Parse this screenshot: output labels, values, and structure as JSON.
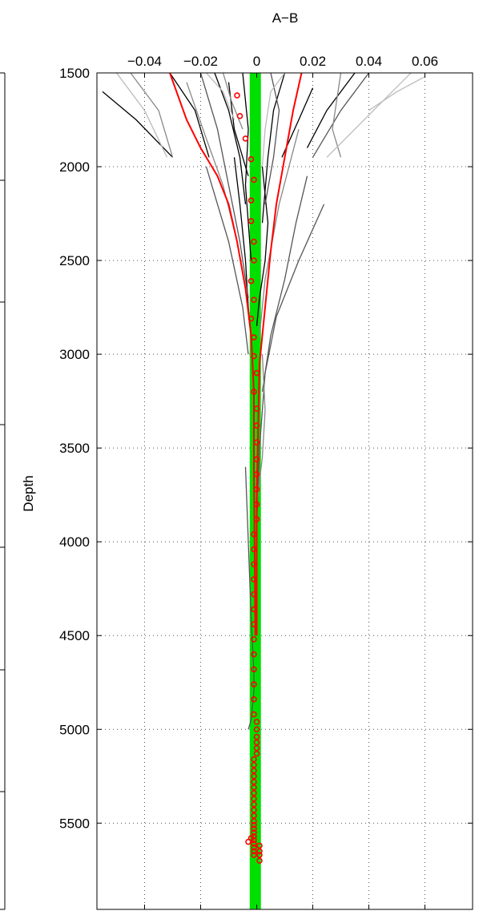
{
  "chart_data": {
    "type": "line",
    "title": "",
    "xlabel": "A−B",
    "ylabel": "Depth",
    "x_axis_position": "top",
    "y_reversed": true,
    "xlim": [
      -0.057,
      0.077
    ],
    "ylim": [
      1500,
      5960
    ],
    "grid": true,
    "legend": "none",
    "x_ticks": [
      -0.04,
      -0.02,
      0,
      0.02,
      0.04,
      0.06
    ],
    "x_tick_labels": [
      "−0.04",
      "−0.02",
      "0",
      "0.02",
      "0.04",
      "0.06"
    ],
    "y_ticks": [
      1500,
      2000,
      2500,
      3000,
      3500,
      4000,
      4500,
      5000,
      5500
    ],
    "y_tick_labels": [
      "1500",
      "2000",
      "2500",
      "3000",
      "3500",
      "4000",
      "4500",
      "5000",
      "5500"
    ],
    "band": {
      "color": "#00e000",
      "x": [
        -0.0025,
        0.0015
      ],
      "y": [
        1500,
        5960
      ]
    },
    "colors": {
      "red": "#ff0000",
      "band": "#00e000",
      "grid": "#555555"
    },
    "profiles": [
      {
        "color": "#000000",
        "x": [
          -0.055,
          -0.043,
          -0.03
        ],
        "y": [
          1600,
          1750,
          1950
        ]
      },
      {
        "color": "#000000",
        "x": [
          -0.031,
          -0.022,
          -0.017
        ],
        "y": [
          1500,
          1700,
          1950
        ]
      },
      {
        "color": "#000000",
        "x": [
          -0.015,
          -0.01,
          -0.006,
          -0.004
        ],
        "y": [
          1500,
          1700,
          1950,
          2200
        ]
      },
      {
        "color": "#000000",
        "x": [
          -0.005,
          -0.003,
          -0.004,
          -0.002
        ],
        "y": [
          1500,
          1800,
          2100,
          2500
        ]
      },
      {
        "color": "#000000",
        "x": [
          0.01,
          0.006,
          0.004,
          0.002
        ],
        "y": [
          1500,
          1700,
          1950,
          2300
        ]
      },
      {
        "color": "#000000",
        "x": [
          0.02,
          0.015,
          0.009
        ],
        "y": [
          1580,
          1750,
          1950
        ]
      },
      {
        "color": "#000000",
        "x": [
          0.035,
          0.025,
          0.018
        ],
        "y": [
          1500,
          1700,
          1900
        ]
      },
      {
        "color": "#000000",
        "x": [
          -0.008,
          -0.006,
          -0.004,
          -0.003,
          -0.002
        ],
        "y": [
          1950,
          2200,
          2500,
          2750,
          2900
        ]
      },
      {
        "color": "#000000",
        "x": [
          0.002,
          0.004,
          0.003,
          0.001,
          0.0
        ],
        "y": [
          2000,
          2300,
          2500,
          2700,
          2850
        ]
      },
      {
        "color": "#000000",
        "x": [
          -0.01,
          -0.008,
          -0.003
        ],
        "y": [
          1550,
          1800,
          2050
        ]
      },
      {
        "color": "#555555",
        "x": [
          -0.02,
          -0.014,
          -0.01,
          -0.006,
          -0.003
        ],
        "y": [
          1500,
          1800,
          2100,
          2400,
          2700
        ]
      },
      {
        "color": "#555555",
        "x": [
          0.005,
          0.008,
          0.006,
          0.003
        ],
        "y": [
          1500,
          1700,
          1950,
          2200
        ]
      },
      {
        "color": "#555555",
        "x": [
          0.018,
          0.014,
          0.01,
          0.005,
          0.002
        ],
        "y": [
          2050,
          2300,
          2600,
          2900,
          3200
        ]
      },
      {
        "color": "#555555",
        "x": [
          -0.018,
          -0.01,
          -0.005,
          -0.003
        ],
        "y": [
          2000,
          2400,
          2750,
          3000
        ]
      },
      {
        "color": "#555555",
        "x": [
          0.024,
          0.015,
          0.007,
          0.003,
          0.001,
          0.0
        ],
        "y": [
          2200,
          2500,
          2800,
          3100,
          3500,
          3900
        ]
      },
      {
        "color": "#555555",
        "x": [
          -0.004,
          -0.003,
          -0.002,
          -0.001,
          -0.001,
          -0.002,
          -0.003
        ],
        "y": [
          3600,
          4000,
          4400,
          4700,
          4800,
          4950,
          5000
        ]
      },
      {
        "color": "#555555",
        "x": [
          0.04,
          0.03,
          0.02
        ],
        "y": [
          1500,
          1700,
          1950
        ]
      },
      {
        "color": "#888888",
        "x": [
          -0.045,
          -0.035,
          -0.03
        ],
        "y": [
          1500,
          1700,
          1950
        ]
      },
      {
        "color": "#888888",
        "x": [
          0.03,
          0.027,
          0.03
        ],
        "y": [
          1500,
          1800,
          1950
        ]
      },
      {
        "color": "#888888",
        "x": [
          -0.025,
          -0.018,
          -0.012,
          -0.007
        ],
        "y": [
          1550,
          1850,
          2100,
          2400
        ]
      },
      {
        "color": "#888888",
        "x": [
          0.015,
          0.008,
          0.003,
          0.001
        ],
        "y": [
          1800,
          2200,
          2600,
          2900
        ]
      },
      {
        "color": "#888888",
        "x": [
          0.002,
          0.003,
          0.002,
          0.0
        ],
        "y": [
          3000,
          3300,
          3550,
          3800
        ]
      },
      {
        "color": "#888888",
        "x": [
          -0.012,
          -0.009,
          -0.005
        ],
        "y": [
          1500,
          1650,
          1800
        ]
      },
      {
        "color": "#bbbbbb",
        "x": [
          -0.05,
          -0.04,
          -0.032
        ],
        "y": [
          1500,
          1700,
          1950
        ]
      },
      {
        "color": "#bbbbbb",
        "x": [
          0.055,
          0.045,
          0.025
        ],
        "y": [
          1500,
          1650,
          1950
        ]
      },
      {
        "color": "#bbbbbb",
        "x": [
          0.01,
          0.005,
          0.003,
          0.002
        ],
        "y": [
          1500,
          1600,
          1800,
          2000
        ]
      },
      {
        "color": "#bbbbbb",
        "x": [
          -0.018,
          -0.012,
          -0.008
        ],
        "y": [
          1500,
          1600,
          1750
        ]
      },
      {
        "color": "#bbbbbb",
        "x": [
          0.06,
          0.05,
          0.04
        ],
        "y": [
          1520,
          1600,
          1700
        ]
      }
    ],
    "red_bounds": [
      {
        "x": [
          -0.031,
          -0.025,
          -0.02,
          -0.014,
          -0.01,
          -0.007,
          -0.004,
          -0.002,
          -0.001,
          -0.001,
          -0.0005
        ],
        "y": [
          1500,
          1750,
          1900,
          2050,
          2200,
          2400,
          2650,
          2900,
          3200,
          3600,
          4500
        ]
      },
      {
        "x": [
          0.016,
          0.013,
          0.01,
          0.007,
          0.005,
          0.003,
          0.001,
          0.0005,
          0.0,
          0.0
        ],
        "y": [
          1500,
          1700,
          1950,
          2200,
          2450,
          2750,
          3050,
          3400,
          3800,
          4500
        ]
      }
    ],
    "red_markers": {
      "x": [
        -0.007,
        -0.006,
        -0.004,
        -0.002,
        -0.001,
        -0.002,
        -0.002,
        -0.001,
        -0.001,
        -0.002,
        -0.001,
        -0.002,
        -0.001,
        -0.001,
        0.0,
        -0.001,
        0.0,
        0.0,
        0.0,
        0.0,
        0.0,
        0.0,
        0.0,
        0.0,
        -0.001,
        -0.001,
        -0.001,
        -0.001,
        -0.001,
        -0.001,
        -0.001,
        -0.001,
        -0.001,
        -0.001,
        -0.001,
        -0.001,
        -0.001,
        0.0,
        0.0,
        0.0,
        0.0,
        0.0,
        0.0,
        -0.001,
        -0.001,
        -0.001,
        -0.001,
        -0.001,
        -0.001,
        -0.001,
        -0.001,
        -0.001,
        -0.001,
        -0.001,
        -0.001,
        -0.001,
        -0.001,
        -0.001,
        -0.001,
        -0.001,
        -0.001,
        -0.001,
        -0.001,
        -0.001,
        -0.002,
        -0.003,
        0.001,
        0.001,
        0.001,
        0.001
      ],
      "y": [
        1620,
        1730,
        1850,
        1960,
        2070,
        2180,
        2290,
        2400,
        2500,
        2610,
        2710,
        2810,
        2910,
        3010,
        3100,
        3200,
        3290,
        3380,
        3470,
        3560,
        3640,
        3720,
        3800,
        3880,
        3960,
        4040,
        4120,
        4200,
        4280,
        4360,
        4440,
        4520,
        4600,
        4680,
        4760,
        4840,
        4920,
        4960,
        5000,
        5040,
        5070,
        5100,
        5130,
        5160,
        5190,
        5220,
        5250,
        5280,
        5310,
        5340,
        5370,
        5400,
        5430,
        5460,
        5490,
        5510,
        5530,
        5550,
        5570,
        5590,
        5610,
        5630,
        5650,
        5670,
        5580,
        5600,
        5620,
        5650,
        5670,
        5700
      ]
    }
  }
}
